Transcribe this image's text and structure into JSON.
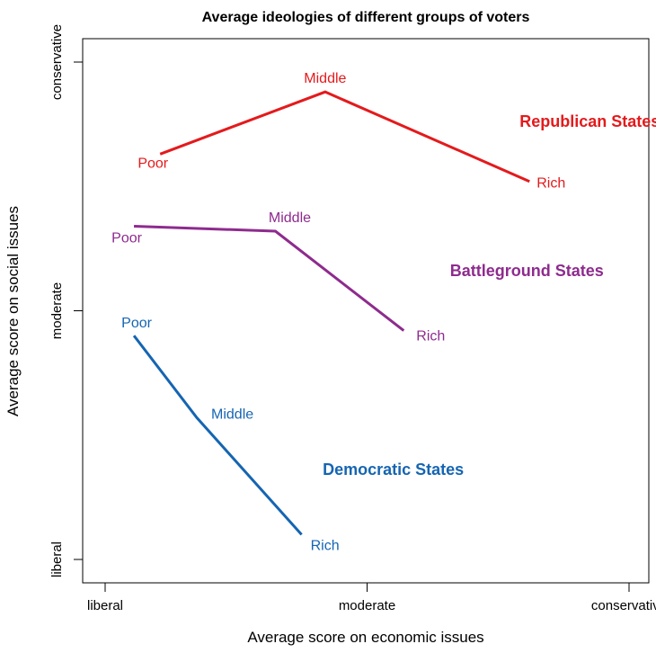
{
  "chart_data": {
    "type": "line",
    "title": "Average ideologies of different groups of voters",
    "xlabel": "Average score on economic issues",
    "ylabel": "Average score on social issues",
    "xlim": [
      -1,
      1
    ],
    "ylim": [
      -1,
      1
    ],
    "x_ticks": [
      {
        "value": -1,
        "label": "liberal"
      },
      {
        "value": 0,
        "label": "moderate"
      },
      {
        "value": 1,
        "label": "conservative"
      }
    ],
    "y_ticks": [
      {
        "value": -1,
        "label": "liberal"
      },
      {
        "value": 0,
        "label": "moderate"
      },
      {
        "value": 1,
        "label": "conservative"
      }
    ],
    "grid": false,
    "series": [
      {
        "name": "Republican States",
        "color": "#e41a1c",
        "points": [
          {
            "label": "Poor",
            "x": -0.79,
            "y": 0.63
          },
          {
            "label": "Middle",
            "x": -0.16,
            "y": 0.88
          },
          {
            "label": "Rich",
            "x": 0.62,
            "y": 0.52
          }
        ]
      },
      {
        "name": "Battleground States",
        "color": "#8e2b8e",
        "points": [
          {
            "label": "Poor",
            "x": -0.89,
            "y": 0.34
          },
          {
            "label": "Middle",
            "x": -0.35,
            "y": 0.32
          },
          {
            "label": "Rich",
            "x": 0.14,
            "y": -0.08
          }
        ]
      },
      {
        "name": "Democratic States",
        "color": "#1565b2",
        "points": [
          {
            "label": "Poor",
            "x": -0.89,
            "y": -0.1
          },
          {
            "label": "Middle",
            "x": -0.65,
            "y": -0.43
          },
          {
            "label": "Rich",
            "x": -0.25,
            "y": -0.9
          }
        ]
      }
    ]
  }
}
